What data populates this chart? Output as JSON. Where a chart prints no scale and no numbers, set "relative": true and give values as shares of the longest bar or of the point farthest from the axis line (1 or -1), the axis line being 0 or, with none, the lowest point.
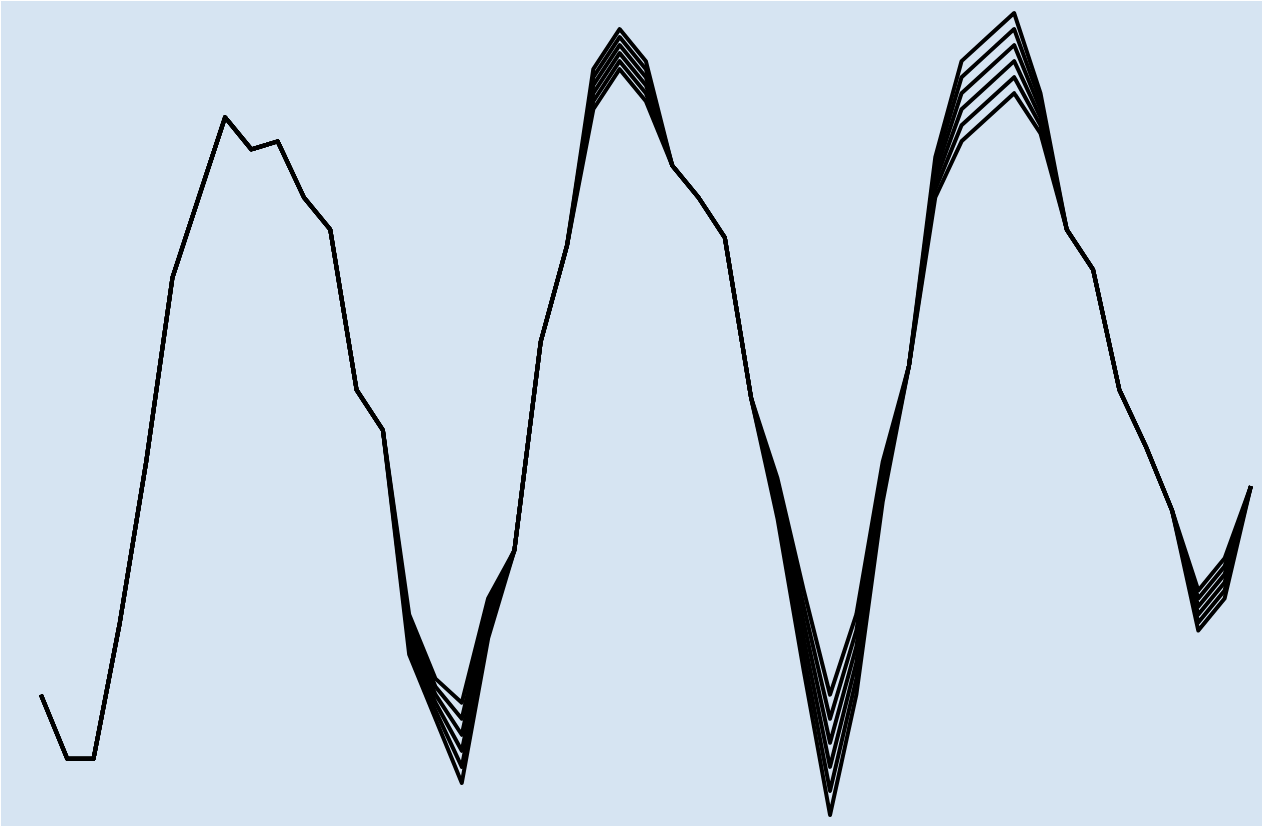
{
  "chart_data": {
    "type": "line",
    "relative": true,
    "grid": false,
    "marker": "none",
    "line_style": "solid",
    "categories": [
      null,
      null,
      null,
      null,
      null,
      null,
      null,
      null,
      null,
      null,
      null,
      null,
      null,
      null,
      null,
      null,
      null,
      null,
      null,
      null,
      null,
      null,
      null,
      null,
      null,
      null,
      null,
      null,
      null,
      null,
      null,
      null,
      null,
      null,
      null,
      null,
      null,
      null,
      null,
      null,
      null,
      null,
      null,
      null,
      null,
      null,
      null
    ],
    "series": [
      {
        "color": "#000000",
        "values": [
          0.15,
          0.07,
          0.07,
          0.24,
          0.44,
          0.67,
          0.77,
          0.87,
          0.83,
          0.84,
          0.77,
          0.73,
          0.53,
          0.48,
          0.25,
          0.17,
          0.14,
          0.27,
          0.33,
          0.59,
          0.71,
          0.93,
          0.98,
          0.94,
          0.81,
          0.77,
          0.72,
          0.52,
          0.42,
          0.28,
          0.15,
          0.25,
          0.44,
          0.56,
          0.82,
          0.94,
          0.97,
          1.0,
          0.9,
          0.73,
          0.68,
          0.53,
          0.46,
          0.38,
          0.28,
          0.32,
          0.41
        ]
      },
      {
        "color": "#000000",
        "values": [
          0.15,
          0.07,
          0.07,
          0.24,
          0.44,
          0.67,
          0.77,
          0.87,
          0.83,
          0.84,
          0.77,
          0.73,
          0.53,
          0.48,
          0.24,
          0.16,
          0.12,
          0.26,
          0.33,
          0.59,
          0.71,
          0.92,
          0.97,
          0.93,
          0.81,
          0.77,
          0.72,
          0.52,
          0.41,
          0.26,
          0.12,
          0.23,
          0.43,
          0.56,
          0.81,
          0.92,
          0.95,
          0.98,
          0.89,
          0.73,
          0.68,
          0.53,
          0.46,
          0.38,
          0.27,
          0.31,
          0.41
        ]
      },
      {
        "color": "#000000",
        "values": [
          0.15,
          0.07,
          0.07,
          0.24,
          0.44,
          0.67,
          0.77,
          0.87,
          0.83,
          0.84,
          0.77,
          0.73,
          0.53,
          0.48,
          0.23,
          0.15,
          0.1,
          0.25,
          0.33,
          0.59,
          0.71,
          0.91,
          0.96,
          0.92,
          0.81,
          0.77,
          0.72,
          0.52,
          0.4,
          0.24,
          0.09,
          0.21,
          0.42,
          0.56,
          0.8,
          0.9,
          0.93,
          0.96,
          0.88,
          0.73,
          0.68,
          0.53,
          0.46,
          0.38,
          0.26,
          0.3,
          0.41
        ]
      },
      {
        "color": "#000000",
        "values": [
          0.15,
          0.07,
          0.07,
          0.24,
          0.44,
          0.67,
          0.77,
          0.87,
          0.83,
          0.84,
          0.77,
          0.73,
          0.53,
          0.48,
          0.22,
          0.14,
          0.08,
          0.24,
          0.33,
          0.59,
          0.71,
          0.9,
          0.95,
          0.91,
          0.81,
          0.77,
          0.72,
          0.52,
          0.39,
          0.22,
          0.06,
          0.19,
          0.41,
          0.56,
          0.79,
          0.88,
          0.91,
          0.94,
          0.87,
          0.73,
          0.68,
          0.53,
          0.46,
          0.38,
          0.25,
          0.29,
          0.41
        ]
      },
      {
        "color": "#000000",
        "values": [
          0.15,
          0.07,
          0.07,
          0.24,
          0.44,
          0.67,
          0.77,
          0.87,
          0.83,
          0.84,
          0.77,
          0.73,
          0.53,
          0.48,
          0.21,
          0.13,
          0.06,
          0.23,
          0.33,
          0.59,
          0.71,
          0.89,
          0.94,
          0.9,
          0.81,
          0.77,
          0.72,
          0.52,
          0.38,
          0.2,
          0.03,
          0.17,
          0.4,
          0.56,
          0.78,
          0.86,
          0.89,
          0.92,
          0.86,
          0.73,
          0.68,
          0.53,
          0.46,
          0.38,
          0.24,
          0.28,
          0.41
        ]
      },
      {
        "color": "#000000",
        "values": [
          0.15,
          0.07,
          0.07,
          0.24,
          0.44,
          0.67,
          0.77,
          0.87,
          0.83,
          0.84,
          0.77,
          0.73,
          0.53,
          0.48,
          0.2,
          0.12,
          0.04,
          0.22,
          0.33,
          0.59,
          0.71,
          0.88,
          0.93,
          0.89,
          0.81,
          0.77,
          0.72,
          0.52,
          0.37,
          0.18,
          0.0,
          0.15,
          0.39,
          0.56,
          0.77,
          0.84,
          0.87,
          0.9,
          0.85,
          0.73,
          0.68,
          0.53,
          0.46,
          0.38,
          0.23,
          0.27,
          0.41
        ]
      }
    ]
  }
}
